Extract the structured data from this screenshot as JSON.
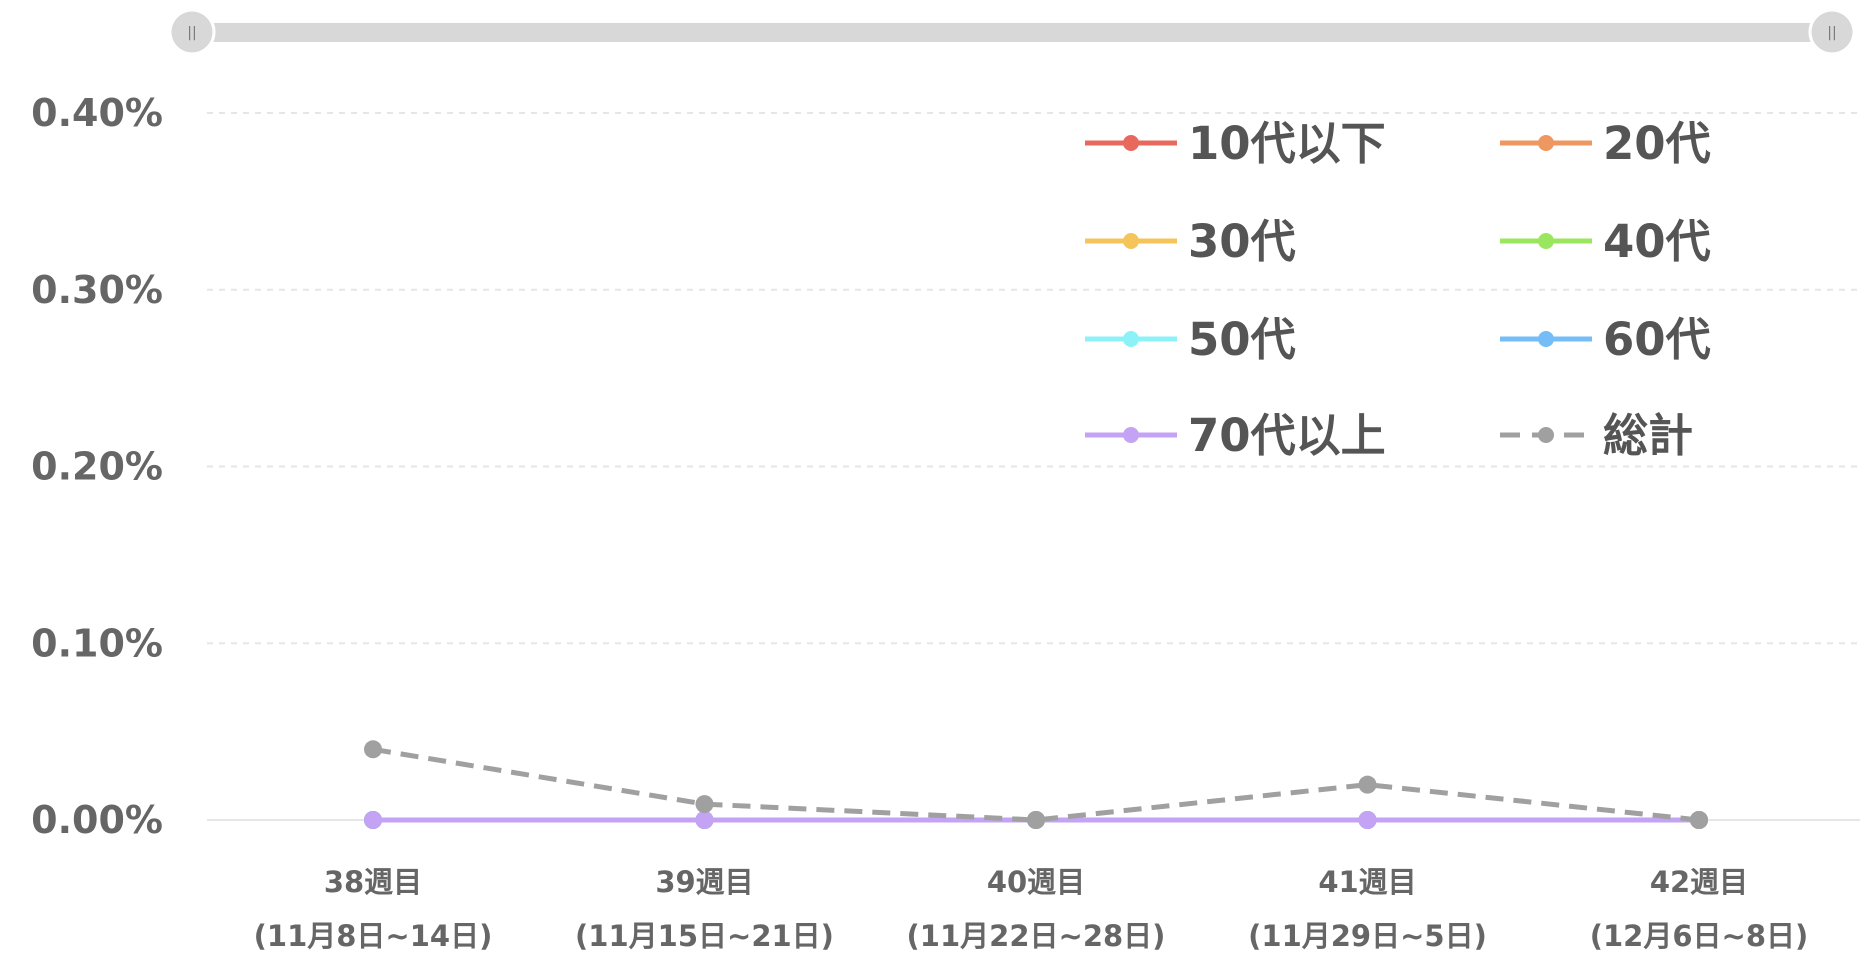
{
  "slider": {
    "left_handle_icon": "pause-bars-icon",
    "right_handle_icon": "pause-bars-icon",
    "range": [
      0,
      1
    ]
  },
  "chart_data": {
    "type": "line",
    "ylim": [
      0,
      0.4
    ],
    "y_ticks": [
      "0.00%",
      "0.10%",
      "0.20%",
      "0.30%",
      "0.40%"
    ],
    "grid": true,
    "legend_position": "top-right",
    "categories": [
      [
        "38週目",
        "(11月8日~14日)"
      ],
      [
        "39週目",
        "(11月15日~21日)"
      ],
      [
        "40週目",
        "(11月22日~28日)"
      ],
      [
        "41週目",
        "(11月29日~5日)"
      ],
      [
        "42週目",
        "(12月6日~8日)"
      ]
    ],
    "series": [
      {
        "name": "10代以下",
        "color": "#e8685e",
        "dashed": false,
        "values": [
          0,
          0,
          0,
          0,
          0
        ]
      },
      {
        "name": "20代",
        "color": "#ee9760",
        "dashed": false,
        "values": [
          0,
          0,
          0,
          0,
          0
        ]
      },
      {
        "name": "30代",
        "color": "#f5c55c",
        "dashed": false,
        "values": [
          0,
          0,
          0,
          0,
          0
        ]
      },
      {
        "name": "40代",
        "color": "#9ae65e",
        "dashed": false,
        "values": [
          0,
          0,
          0,
          0,
          0
        ]
      },
      {
        "name": "50代",
        "color": "#8cf2f8",
        "dashed": false,
        "values": [
          0,
          0,
          0,
          0,
          0
        ]
      },
      {
        "name": "60代",
        "color": "#74bdf7",
        "dashed": false,
        "values": [
          0,
          0,
          0,
          0,
          0
        ]
      },
      {
        "name": "70代以上",
        "color": "#c4a2f4",
        "dashed": false,
        "values": [
          0,
          0,
          0,
          0,
          0
        ]
      },
      {
        "name": "総計",
        "color": "#a0a0a0",
        "dashed": true,
        "values": [
          0.04,
          0.009,
          0,
          0.02,
          0
        ]
      }
    ]
  }
}
